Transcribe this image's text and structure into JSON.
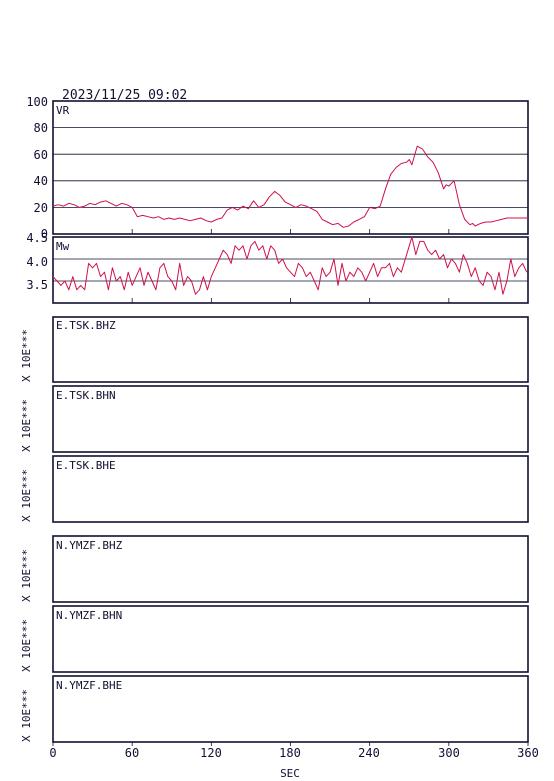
{
  "header": {
    "timestamp": "2023/11/25 09:02"
  },
  "x_axis": {
    "label": "SEC",
    "ticks": [
      "0",
      "60",
      "120",
      "180",
      "240",
      "300",
      "360"
    ]
  },
  "panels": {
    "vr": {
      "label": "VR",
      "y_ticks": [
        "100",
        "80",
        "60",
        "40",
        "20",
        "0"
      ]
    },
    "mw": {
      "label": "Mw",
      "y_ticks": [
        "4.5",
        "4.0",
        "3.5"
      ]
    },
    "stations": [
      {
        "name": "E.TSK.BHZ",
        "scale": "X 10E***"
      },
      {
        "name": "E.TSK.BHN",
        "scale": "X 10E***"
      },
      {
        "name": "E.TSK.BHE",
        "scale": "X 10E***"
      },
      {
        "name": "N.YMZF.BHZ",
        "scale": "X 10E***"
      },
      {
        "name": "N.YMZF.BHN",
        "scale": "X 10E***"
      },
      {
        "name": "N.YMZF.BHE",
        "scale": "X 10E***"
      }
    ]
  },
  "chart_data": [
    {
      "type": "line",
      "ylabel": "VR",
      "xlabel": "SEC",
      "xlim": [
        0,
        360
      ],
      "ylim": [
        0,
        100
      ],
      "grid": true,
      "series": [
        {
          "color": "#d0104a",
          "x": [
            0,
            4,
            8,
            12,
            16,
            20,
            24,
            28,
            32,
            36,
            40,
            44,
            48,
            52,
            56,
            60,
            64,
            68,
            72,
            76,
            80,
            84,
            88,
            92,
            96,
            100,
            104,
            108,
            112,
            116,
            120,
            124,
            128,
            132,
            136,
            140,
            144,
            148,
            152,
            156,
            160,
            164,
            168,
            172,
            176,
            180,
            184,
            188,
            192,
            196,
            200,
            204,
            208,
            212,
            216,
            220,
            224,
            228,
            232,
            236,
            240,
            244,
            248,
            252,
            256,
            260,
            264,
            268,
            270,
            272,
            276,
            280,
            284,
            288,
            292,
            296,
            298,
            300,
            304,
            308,
            312,
            316,
            318,
            320,
            324,
            328,
            332,
            336,
            340,
            344,
            348,
            352,
            356,
            360
          ],
          "y": [
            21,
            22,
            21,
            23,
            22,
            20,
            21,
            23,
            22,
            24,
            25,
            23,
            21,
            23,
            22,
            20,
            13,
            14,
            13,
            12,
            13,
            11,
            12,
            11,
            12,
            11,
            10,
            11,
            12,
            10,
            9,
            11,
            12,
            18,
            20,
            18,
            21,
            19,
            25,
            20,
            22,
            28,
            32,
            29,
            24,
            22,
            20,
            22,
            21,
            19,
            17,
            11,
            9,
            7,
            8,
            5,
            6,
            9,
            11,
            13,
            20,
            19,
            21,
            34,
            45,
            50,
            53,
            54,
            56,
            52,
            66,
            64,
            58,
            54,
            46,
            34,
            37,
            36,
            40,
            22,
            11,
            7,
            8,
            6,
            8,
            9,
            9,
            10,
            11,
            12,
            12,
            12,
            12,
            12
          ]
        }
      ]
    },
    {
      "type": "line",
      "ylabel": "Mw",
      "xlabel": "SEC",
      "xlim": [
        0,
        360
      ],
      "ylim": [
        3.0,
        4.5
      ],
      "grid": true,
      "series": [
        {
          "color": "#d0104a",
          "x": [
            0,
            3,
            6,
            9,
            12,
            15,
            18,
            21,
            24,
            27,
            30,
            33,
            36,
            39,
            42,
            45,
            48,
            51,
            54,
            57,
            60,
            63,
            66,
            69,
            72,
            75,
            78,
            81,
            84,
            87,
            90,
            93,
            96,
            99,
            102,
            105,
            108,
            111,
            114,
            117,
            120,
            123,
            126,
            129,
            132,
            135,
            138,
            141,
            144,
            147,
            150,
            153,
            156,
            159,
            162,
            165,
            168,
            171,
            174,
            177,
            180,
            183,
            186,
            189,
            192,
            195,
            198,
            201,
            204,
            207,
            210,
            213,
            216,
            219,
            222,
            225,
            228,
            231,
            234,
            237,
            240,
            243,
            246,
            249,
            252,
            255,
            258,
            261,
            264,
            267,
            270,
            272,
            275,
            278,
            281,
            284,
            287,
            290,
            293,
            296,
            299,
            302,
            305,
            308,
            311,
            314,
            317,
            320,
            323,
            326,
            329,
            332,
            335,
            338,
            341,
            344,
            347,
            350,
            353,
            356,
            359
          ],
          "y": [
            3.6,
            3.5,
            3.4,
            3.5,
            3.3,
            3.6,
            3.3,
            3.4,
            3.3,
            3.9,
            3.8,
            3.9,
            3.6,
            3.7,
            3.3,
            3.8,
            3.5,
            3.6,
            3.3,
            3.7,
            3.4,
            3.6,
            3.8,
            3.4,
            3.7,
            3.5,
            3.3,
            3.8,
            3.9,
            3.6,
            3.5,
            3.3,
            3.9,
            3.4,
            3.6,
            3.5,
            3.2,
            3.3,
            3.6,
            3.3,
            3.6,
            3.8,
            4.0,
            4.2,
            4.1,
            3.9,
            4.3,
            4.2,
            4.3,
            4.0,
            4.3,
            4.4,
            4.2,
            4.3,
            4.0,
            4.3,
            4.2,
            3.9,
            4.0,
            3.8,
            3.7,
            3.6,
            3.9,
            3.8,
            3.6,
            3.7,
            3.5,
            3.3,
            3.8,
            3.6,
            3.7,
            4.0,
            3.4,
            3.9,
            3.5,
            3.7,
            3.6,
            3.8,
            3.7,
            3.5,
            3.7,
            3.9,
            3.6,
            3.8,
            3.8,
            3.9,
            3.6,
            3.8,
            3.7,
            4.0,
            4.3,
            4.6,
            4.1,
            4.4,
            4.4,
            4.2,
            4.1,
            4.2,
            4.0,
            4.1,
            3.8,
            4.0,
            3.9,
            3.7,
            4.1,
            3.9,
            3.6,
            3.8,
            3.5,
            3.4,
            3.7,
            3.6,
            3.3,
            3.7,
            3.2,
            3.5,
            4.0,
            3.6,
            3.8,
            3.9,
            3.7
          ]
        }
      ]
    }
  ]
}
